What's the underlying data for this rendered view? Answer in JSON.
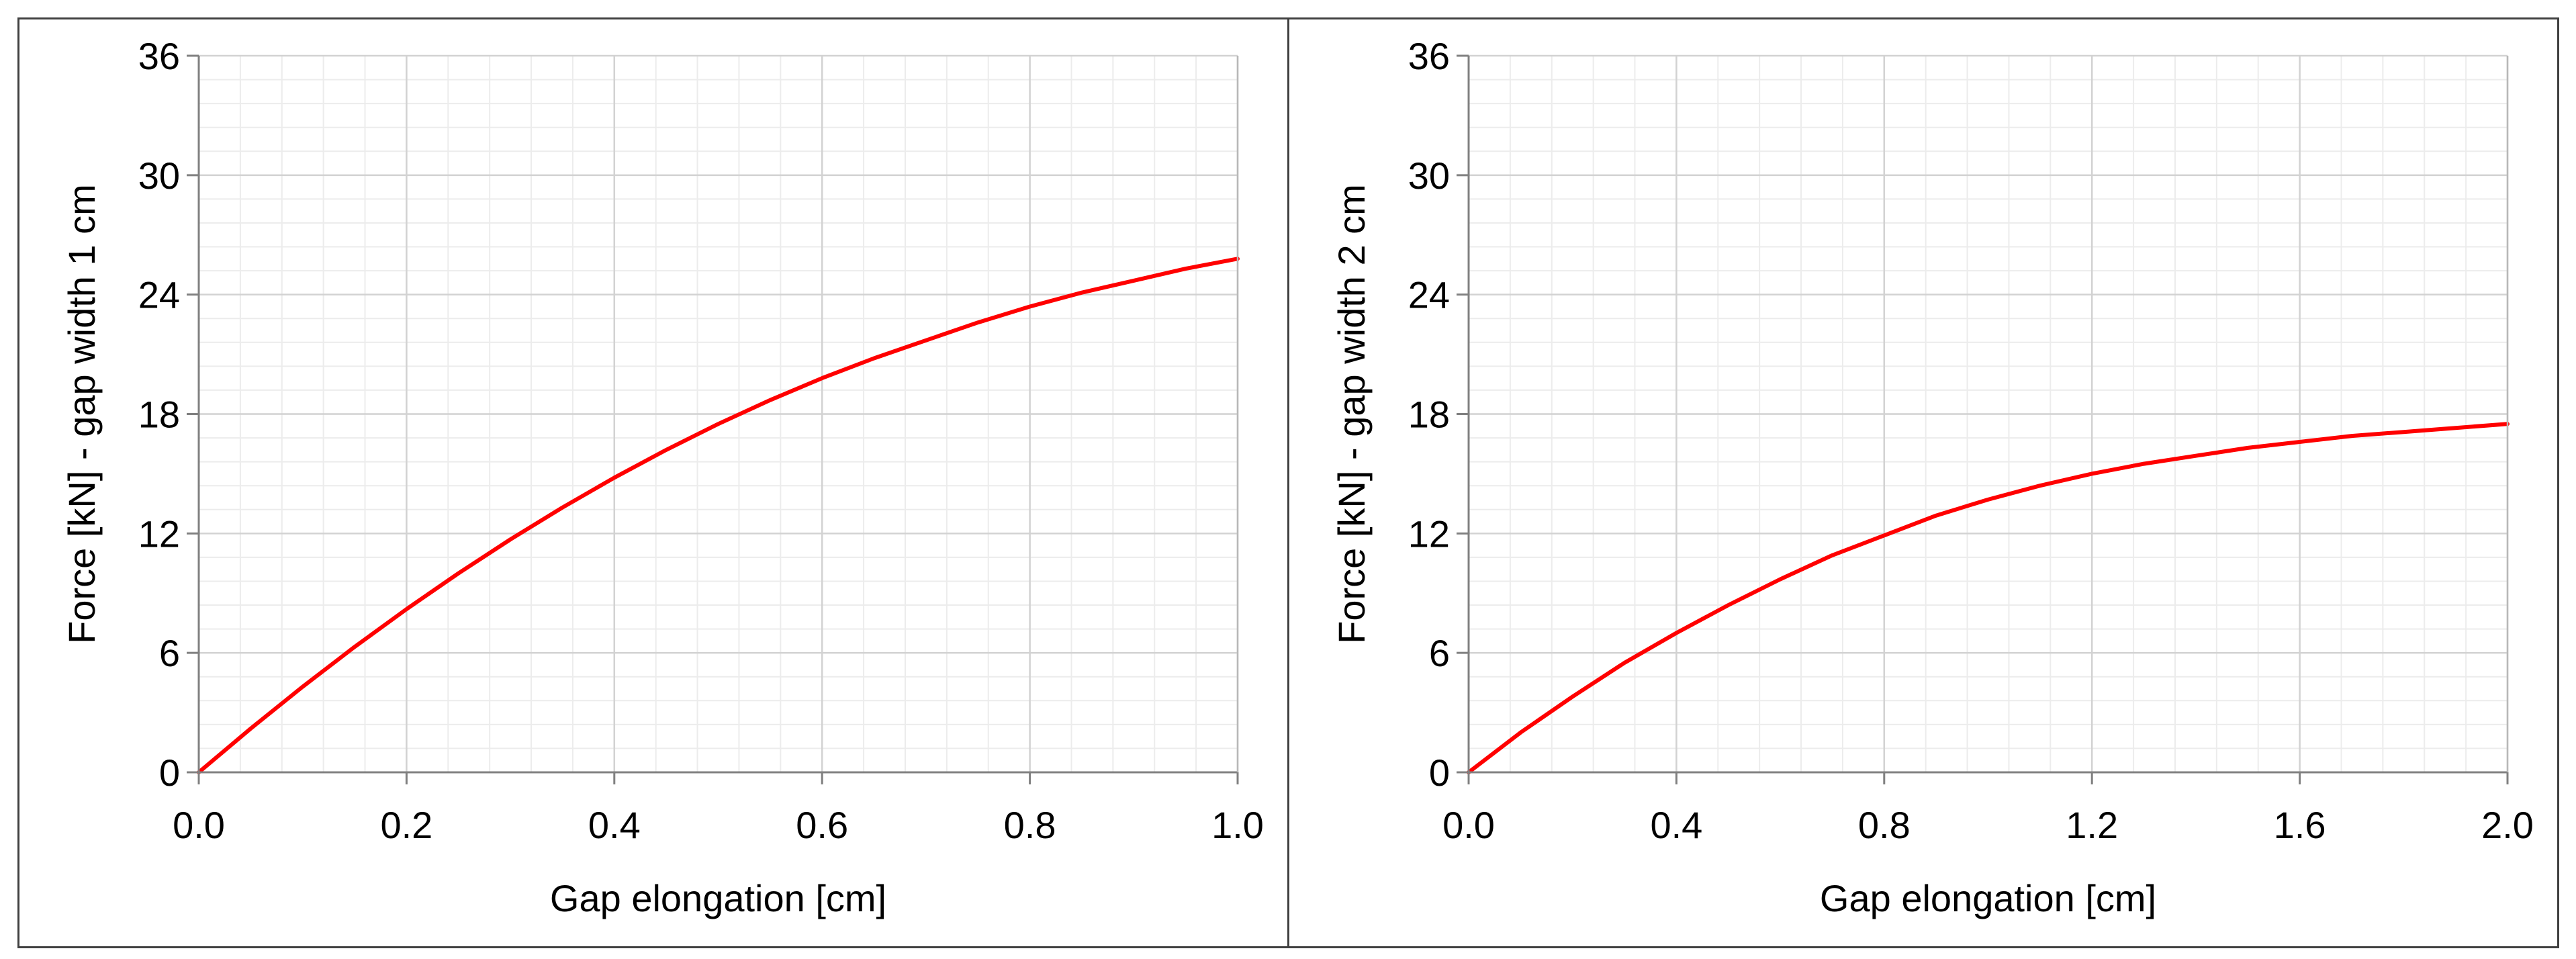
{
  "chart_data": [
    {
      "type": "line",
      "title": "",
      "xlabel": "Gap elongation [cm]",
      "ylabel": "Force [kN] - gap width 1 cm",
      "xlim": [
        0,
        1.0
      ],
      "ylim": [
        0,
        36
      ],
      "x_ticks": [
        0.0,
        0.2,
        0.4,
        0.6,
        0.8,
        1.0
      ],
      "x_tick_labels": [
        "0.0",
        "0.2",
        "0.4",
        "0.6",
        "0.8",
        "1.0"
      ],
      "y_ticks": [
        0,
        6,
        12,
        18,
        24,
        30,
        36
      ],
      "y_tick_labels": [
        "0",
        "6",
        "12",
        "18",
        "24",
        "30",
        "36"
      ],
      "grid": true,
      "minor_grid": true,
      "series": [
        {
          "name": "gap width 1 cm",
          "color": "#ff0000",
          "x": [
            0.0,
            0.05,
            0.1,
            0.15,
            0.2,
            0.25,
            0.3,
            0.35,
            0.4,
            0.45,
            0.5,
            0.55,
            0.6,
            0.65,
            0.7,
            0.75,
            0.8,
            0.85,
            0.9,
            0.95,
            1.0
          ],
          "y": [
            0.0,
            2.2,
            4.3,
            6.3,
            8.2,
            10.0,
            11.7,
            13.3,
            14.8,
            16.2,
            17.5,
            18.7,
            19.8,
            20.8,
            21.7,
            22.6,
            23.4,
            24.1,
            24.7,
            25.3,
            25.8
          ]
        }
      ]
    },
    {
      "type": "line",
      "title": "",
      "xlabel": "Gap elongation [cm]",
      "ylabel": "Force [kN] - gap width 2 cm",
      "xlim": [
        0,
        2.0
      ],
      "ylim": [
        0,
        36
      ],
      "x_ticks": [
        0.0,
        0.4,
        0.8,
        1.2,
        1.6,
        2.0
      ],
      "x_tick_labels": [
        "0.0",
        "0.4",
        "0.8",
        "1.2",
        "1.6",
        "2.0"
      ],
      "y_ticks": [
        0,
        6,
        12,
        18,
        24,
        30,
        36
      ],
      "y_tick_labels": [
        "0",
        "6",
        "12",
        "18",
        "24",
        "30",
        "36"
      ],
      "grid": true,
      "minor_grid": true,
      "series": [
        {
          "name": "gap width 2 cm",
          "color": "#ff0000",
          "x": [
            0.0,
            0.1,
            0.2,
            0.3,
            0.4,
            0.5,
            0.6,
            0.7,
            0.8,
            0.9,
            1.0,
            1.1,
            1.2,
            1.3,
            1.4,
            1.5,
            1.6,
            1.7,
            1.8,
            1.9,
            2.0
          ],
          "y": [
            0.0,
            2.0,
            3.8,
            5.5,
            7.0,
            8.4,
            9.7,
            10.9,
            11.9,
            12.9,
            13.7,
            14.4,
            15.0,
            15.5,
            15.9,
            16.3,
            16.6,
            16.9,
            17.1,
            17.3,
            17.5
          ]
        }
      ]
    }
  ]
}
